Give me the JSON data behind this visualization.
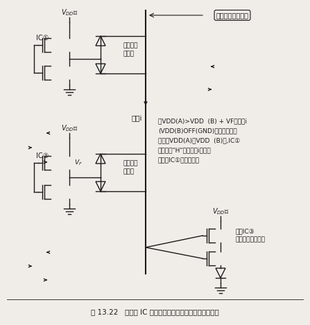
{
  "title": "图 13.22   异电源 IC 的输出连接在同一信号线上时的麻烦",
  "bg_color": "#f0ede8",
  "line_color": "#1a1a1a",
  "text_color": "#1a1a1a",
  "bus_label": "总线之类的信号线",
  "label_ic1": "IC①",
  "label_ic2": "IC②",
  "label_ic3": "接收IC③\n（附有输入容忍）",
  "label_diode1": "输出寄生\n二极管",
  "label_diode2": "输出寄生\n二极管",
  "label_i": "电流i",
  "ann_line1": "在VDD(A)>VDD  (B) + VF时发生i",
  "ann_line2": "(VDD(B)OFF(GND)时，或电源投",
  "ann_line3": "入定时VDD(A)比VDD  (B)快,IC①",
  "ann_line4": "的输出为\"H\"的场合，i变为大",
  "ann_line5": "电流，IC①受到损伤）"
}
